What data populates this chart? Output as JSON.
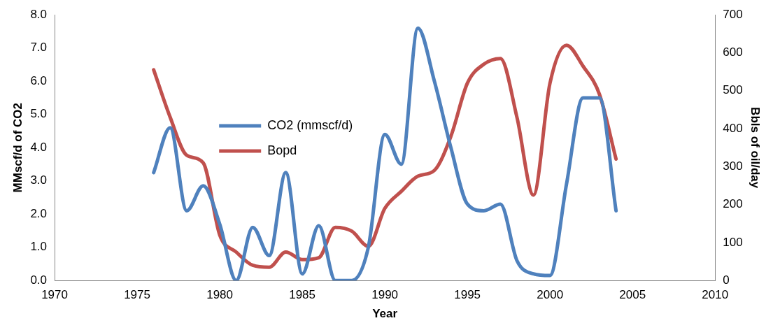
{
  "chart_data": {
    "type": "line",
    "xlabel": "Year",
    "ylabel": "MMscf/d of CO2",
    "y2label": "Bbls of oil/day",
    "x": [
      1976,
      1977,
      1978,
      1979,
      1980,
      1981,
      1982,
      1983,
      1984,
      1985,
      1986,
      1987,
      1988,
      1989,
      1990,
      1991,
      1992,
      1993,
      1994,
      1995,
      1996,
      1997,
      1998,
      1999,
      2000,
      2001,
      2002,
      2003,
      2004
    ],
    "series": [
      {
        "name": "CO2 (mmscf/d)",
        "color": "#4f81bd",
        "values": [
          3.25,
          4.6,
          2.1,
          2.85,
          1.7,
          0.0,
          1.6,
          0.75,
          3.25,
          0.2,
          1.65,
          0.0,
          0.0,
          1.0,
          4.4,
          3.5,
          7.6,
          6.0,
          4.0,
          2.3,
          2.1,
          2.3,
          0.6,
          0.2,
          0.15,
          2.9,
          5.5,
          5.5,
          2.1
        ]
      },
      {
        "name": "Bopd",
        "color": "#c0504d",
        "axis": "y2",
        "values": [
          555,
          430,
          330,
          310,
          120,
          75,
          40,
          35,
          75,
          55,
          60,
          140,
          130,
          90,
          190,
          235,
          275,
          290,
          380,
          520,
          570,
          585,
          430,
          225,
          520,
          620,
          565,
          490,
          320
        ]
      }
    ],
    "xlim": [
      1970,
      2010
    ],
    "xticks": [
      1970,
      1975,
      1980,
      1985,
      1990,
      1995,
      2000,
      2005,
      2010
    ],
    "ylim": [
      0,
      8
    ],
    "yticks": [
      {
        "value": 0,
        "label": "0.0"
      },
      {
        "value": 1,
        "label": "1.0"
      },
      {
        "value": 2,
        "label": "2.0"
      },
      {
        "value": 3,
        "label": "3.0"
      },
      {
        "value": 4,
        "label": "4.0"
      },
      {
        "value": 5,
        "label": "5.0"
      },
      {
        "value": 6,
        "label": "6.0"
      },
      {
        "value": 7,
        "label": "7.0"
      },
      {
        "value": 8,
        "label": "8.0"
      }
    ],
    "y2lim": [
      0,
      700
    ],
    "y2ticks": [
      0,
      100,
      200,
      300,
      400,
      500,
      600,
      700
    ],
    "grid": false,
    "legend": "top left",
    "marker": "none",
    "line_style": "solid"
  }
}
